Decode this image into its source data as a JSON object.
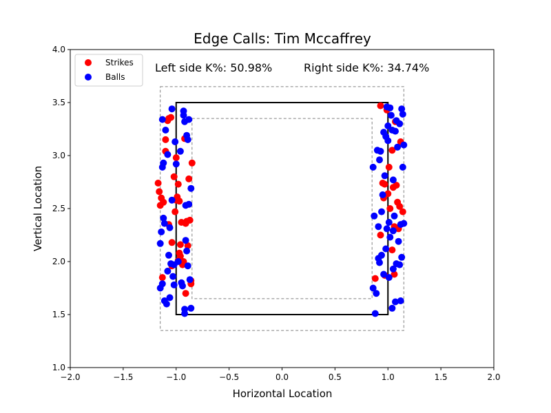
{
  "chart_data": {
    "type": "scatter",
    "title": "Edge Calls: Tim Mccaffrey",
    "xlabel": "Horizontal Location",
    "ylabel": "Vertical Location",
    "xlim": [
      -2.0,
      2.0
    ],
    "ylim": [
      1.0,
      4.0
    ],
    "xticks": [
      "−2.0",
      "−1.5",
      "−1.0",
      "−0.5",
      "0.0",
      "0.5",
      "1.0",
      "1.5",
      "2.0"
    ],
    "xtick_values": [
      -2.0,
      -1.5,
      -1.0,
      -0.5,
      0.0,
      0.5,
      1.0,
      1.5,
      2.0
    ],
    "yticks": [
      "1.0",
      "1.5",
      "2.0",
      "2.5",
      "3.0",
      "3.5",
      "4.0"
    ],
    "ytick_values": [
      1.0,
      1.5,
      2.0,
      2.5,
      3.0,
      3.5,
      4.0
    ],
    "grid": false,
    "legend_position": "top-left",
    "annotations": {
      "left": "Left side K%: 50.98%",
      "right": "Right side K%: 34.74%"
    },
    "strike_zone": {
      "x": [
        -1.0,
        1.0
      ],
      "y": [
        1.5,
        3.5
      ],
      "color": "#000000"
    },
    "outer_zone": {
      "x": [
        -1.15,
        1.15
      ],
      "y": [
        1.35,
        3.65
      ],
      "color": "#808080"
    },
    "inner_zone": {
      "x": [
        -0.85,
        0.85
      ],
      "y": [
        1.65,
        3.35
      ],
      "color": "#808080"
    },
    "series": [
      {
        "name": "Strikes",
        "color": "#ff0000",
        "points": [
          [
            -1.17,
            2.74
          ],
          [
            -1.16,
            2.66
          ],
          [
            -1.15,
            2.53
          ],
          [
            -1.14,
            2.6
          ],
          [
            -1.13,
            1.85
          ],
          [
            -1.12,
            2.56
          ],
          [
            -1.1,
            3.04
          ],
          [
            -1.1,
            3.15
          ],
          [
            -1.08,
            3.33
          ],
          [
            -1.07,
            3.35
          ],
          [
            -1.07,
            2.35
          ],
          [
            -1.05,
            3.36
          ],
          [
            -1.04,
            2.18
          ],
          [
            -1.04,
            1.96
          ],
          [
            -1.02,
            2.8
          ],
          [
            -1.01,
            2.47
          ],
          [
            -1.0,
            2.98
          ],
          [
            -0.99,
            2.61
          ],
          [
            -0.98,
            2.01
          ],
          [
            -0.98,
            2.73
          ],
          [
            -0.97,
            2.57
          ],
          [
            -0.96,
            2.16
          ],
          [
            -0.96,
            2.05
          ],
          [
            -0.95,
            2.37
          ],
          [
            -0.94,
            1.97
          ],
          [
            -0.93,
            2.0
          ],
          [
            -0.92,
            3.16
          ],
          [
            -0.91,
            2.36
          ],
          [
            -0.91,
            1.7
          ],
          [
            -0.9,
            2.38
          ],
          [
            -0.89,
            2.15
          ],
          [
            -0.88,
            2.78
          ],
          [
            -0.87,
            2.39
          ],
          [
            -0.86,
            1.82
          ],
          [
            -0.86,
            1.79
          ],
          [
            -0.85,
            2.93
          ],
          [
            -1.0,
            2.58
          ],
          [
            -0.97,
            2.08
          ],
          [
            0.88,
            1.84
          ],
          [
            0.93,
            3.47
          ],
          [
            0.95,
            2.74
          ],
          [
            0.96,
            2.6
          ],
          [
            0.97,
            2.73
          ],
          [
            0.99,
            3.43
          ],
          [
            1.0,
            2.64
          ],
          [
            1.01,
            2.89
          ],
          [
            1.02,
            2.5
          ],
          [
            1.04,
            3.05
          ],
          [
            1.05,
            2.7
          ],
          [
            1.06,
            2.33
          ],
          [
            1.07,
            3.32
          ],
          [
            1.08,
            2.72
          ],
          [
            1.09,
            2.56
          ],
          [
            1.1,
            2.31
          ],
          [
            1.11,
            2.52
          ],
          [
            1.12,
            3.13
          ],
          [
            1.14,
            2.47
          ],
          [
            1.06,
            1.88
          ],
          [
            1.04,
            2.11
          ],
          [
            0.97,
            1.87
          ],
          [
            0.93,
            2.25
          ]
        ]
      },
      {
        "name": "Balls",
        "color": "#0000ff",
        "points": [
          [
            -1.15,
            1.75
          ],
          [
            -1.15,
            2.17
          ],
          [
            -1.14,
            2.28
          ],
          [
            -1.13,
            1.79
          ],
          [
            -1.13,
            2.89
          ],
          [
            -1.13,
            3.34
          ],
          [
            -1.12,
            2.41
          ],
          [
            -1.12,
            2.93
          ],
          [
            -1.11,
            2.36
          ],
          [
            -1.11,
            1.63
          ],
          [
            -1.1,
            3.24
          ],
          [
            -1.09,
            1.6
          ],
          [
            -1.08,
            1.91
          ],
          [
            -1.08,
            3.01
          ],
          [
            -1.07,
            2.06
          ],
          [
            -1.06,
            2.32
          ],
          [
            -1.06,
            1.66
          ],
          [
            -1.05,
            1.98
          ],
          [
            -1.04,
            3.44
          ],
          [
            -1.04,
            2.58
          ],
          [
            -1.03,
            1.86
          ],
          [
            -1.02,
            1.97
          ],
          [
            -1.02,
            1.78
          ],
          [
            -1.01,
            3.13
          ],
          [
            -1.0,
            2.92
          ],
          [
            -0.98,
            2.0
          ],
          [
            -0.96,
            3.04
          ],
          [
            -0.95,
            1.8
          ],
          [
            -0.94,
            1.77
          ],
          [
            -0.93,
            3.38
          ],
          [
            -0.93,
            3.42
          ],
          [
            -0.92,
            3.32
          ],
          [
            -0.92,
            1.55
          ],
          [
            -0.92,
            1.51
          ],
          [
            -0.91,
            2.2
          ],
          [
            -0.91,
            2.53
          ],
          [
            -0.9,
            3.19
          ],
          [
            -0.9,
            2.1
          ],
          [
            -0.89,
            3.15
          ],
          [
            -0.89,
            1.96
          ],
          [
            -0.88,
            3.34
          ],
          [
            -0.88,
            2.54
          ],
          [
            -0.87,
            1.83
          ],
          [
            -0.86,
            2.69
          ],
          [
            -0.86,
            1.56
          ],
          [
            0.86,
            2.89
          ],
          [
            0.86,
            1.75
          ],
          [
            0.87,
            2.43
          ],
          [
            0.88,
            1.51
          ],
          [
            0.89,
            1.7
          ],
          [
            0.9,
            3.05
          ],
          [
            0.91,
            2.03
          ],
          [
            0.91,
            2.33
          ],
          [
            0.92,
            2.96
          ],
          [
            0.92,
            1.99
          ],
          [
            0.93,
            3.04
          ],
          [
            0.94,
            2.47
          ],
          [
            0.95,
            2.63
          ],
          [
            0.96,
            3.22
          ],
          [
            0.96,
            1.88
          ],
          [
            0.97,
            2.81
          ],
          [
            0.98,
            2.12
          ],
          [
            0.99,
            3.46
          ],
          [
            0.99,
            2.31
          ],
          [
            1.0,
            3.28
          ],
          [
            1.0,
            3.14
          ],
          [
            1.01,
            2.37
          ],
          [
            1.01,
            1.85
          ],
          [
            1.02,
            3.45
          ],
          [
            1.03,
            3.38
          ],
          [
            1.04,
            3.24
          ],
          [
            1.04,
            1.56
          ],
          [
            1.05,
            2.29
          ],
          [
            1.05,
            1.93
          ],
          [
            1.06,
            2.43
          ],
          [
            1.07,
            3.23
          ],
          [
            1.07,
            1.62
          ],
          [
            1.08,
            3.33
          ],
          [
            1.08,
            1.98
          ],
          [
            1.09,
            3.08
          ],
          [
            1.1,
            2.19
          ],
          [
            1.11,
            3.3
          ],
          [
            1.11,
            1.97
          ],
          [
            1.12,
            2.35
          ],
          [
            1.12,
            1.63
          ],
          [
            1.13,
            3.44
          ],
          [
            1.13,
            2.04
          ],
          [
            1.14,
            2.89
          ],
          [
            1.14,
            3.39
          ],
          [
            1.15,
            3.1
          ],
          [
            1.15,
            2.36
          ],
          [
            1.05,
            2.77
          ],
          [
            0.98,
            3.18
          ],
          [
            0.94,
            2.06
          ],
          [
            1.02,
            2.23
          ]
        ]
      }
    ]
  }
}
